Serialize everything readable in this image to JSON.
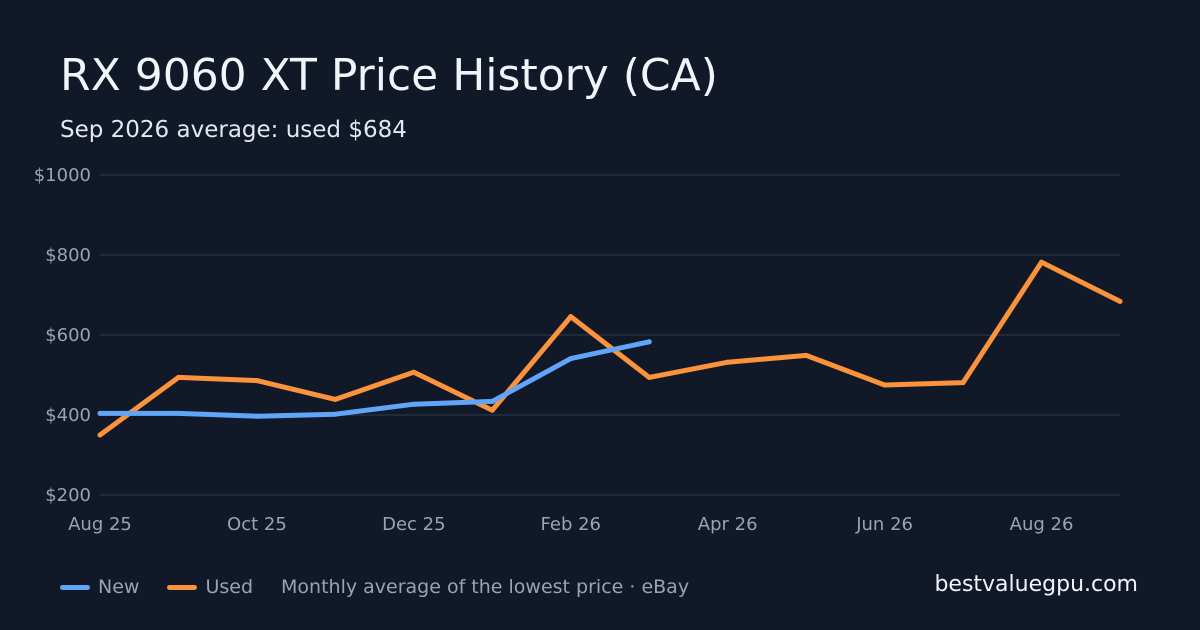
{
  "title": "RX 9060 XT Price History (CA)",
  "subtitle": "Sep 2026 average: used $684",
  "brand": "bestvaluegpu.com",
  "legend": {
    "items": [
      {
        "name": "New",
        "color": "#60a5fa"
      },
      {
        "name": "Used",
        "color": "#fb923c"
      }
    ],
    "note": "Monthly average of the lowest price · eBay"
  },
  "colors": {
    "background": "#111827",
    "grid": "#263040",
    "new": "#60a5fa",
    "used": "#fb923c"
  },
  "chart_data": {
    "type": "line",
    "x": [
      "2025-08",
      "2025-09",
      "2025-10",
      "2025-11",
      "2025-12",
      "2026-01",
      "2026-02",
      "2026-03",
      "2026-04",
      "2026-05",
      "2026-06",
      "2026-07",
      "2026-08",
      "2026-09"
    ],
    "xticks": [
      "Aug 25",
      "Oct 25",
      "Dec 25",
      "Feb 26",
      "Apr 26",
      "Jun 26",
      "Aug 26"
    ],
    "yticks": [
      "$1000",
      "$800",
      "$600",
      "$400",
      "$200"
    ],
    "ylim": [
      200,
      1000
    ],
    "grid": true,
    "legend_position": "bottom-left",
    "series": [
      {
        "name": "New",
        "values": [
          404,
          404,
          397,
          402,
          427,
          434,
          541,
          583,
          null,
          null,
          null,
          null,
          null,
          null
        ]
      },
      {
        "name": "Used",
        "values": [
          350,
          494,
          486,
          439,
          507,
          412,
          646,
          494,
          532,
          549,
          475,
          481,
          782,
          684
        ]
      }
    ]
  }
}
